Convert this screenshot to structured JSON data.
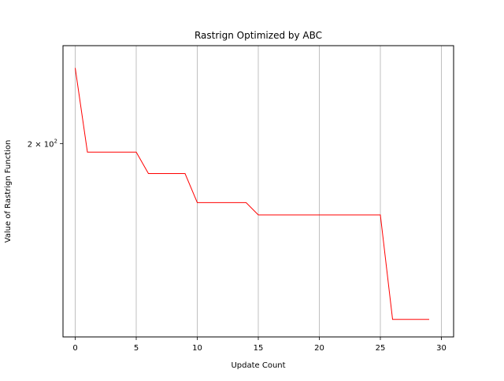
{
  "chart_data": {
    "type": "line",
    "title": "Rastrign Optimized by ABC",
    "xlabel": "Update Count",
    "ylabel": "Value of Rastrign Function",
    "x": [
      0,
      1,
      2,
      3,
      4,
      5,
      6,
      7,
      8,
      9,
      10,
      11,
      12,
      13,
      14,
      15,
      16,
      17,
      18,
      19,
      20,
      21,
      22,
      23,
      24,
      25,
      26,
      27,
      28,
      29
    ],
    "series": [
      {
        "color": "#ff0000",
        "values": [
          250,
          195,
          195,
          195,
          195,
          195,
          183,
          183,
          183,
          183,
          168,
          168,
          168,
          168,
          168,
          162,
          162,
          162,
          162,
          162,
          162,
          162,
          162,
          162,
          162,
          162,
          119,
          119,
          119,
          119
        ]
      }
    ],
    "xlim": [
      -1,
      31
    ],
    "ylim": [
      113,
      267
    ],
    "yscale": "log",
    "x_ticks": [
      0,
      5,
      10,
      15,
      20,
      25,
      30
    ],
    "x_tick_labels": [
      "0",
      "5",
      "10",
      "15",
      "20",
      "25",
      "30"
    ],
    "y_ticks": [
      200
    ],
    "y_tick_labels": [
      "2",
      "10",
      "2"
    ],
    "grid": {
      "x": true,
      "y": false,
      "color": "#b0b0b0"
    },
    "legend": "none"
  }
}
